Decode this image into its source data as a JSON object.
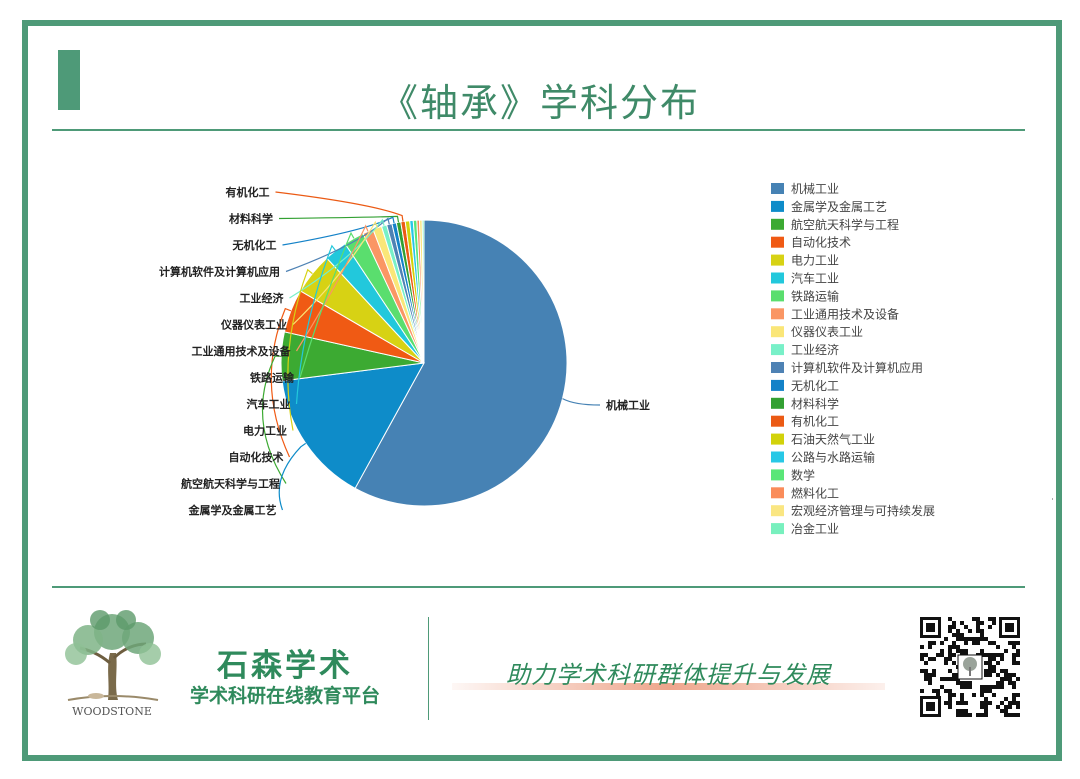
{
  "title": "《轴承》学科分布",
  "colors": {
    "frame": "#4e9a78",
    "title": "#3f8a68",
    "brand": "#2f8a5c"
  },
  "chart_data": {
    "type": "pie",
    "title": "",
    "legend_position": "right",
    "slices": [
      {
        "label": "机械工业",
        "value": 58.0,
        "color": "#4682b4"
      },
      {
        "label": "金属学及金属工艺",
        "value": 15.0,
        "color": "#0e8cc9"
      },
      {
        "label": "航空航天科学与工程",
        "value": 5.5,
        "color": "#3caa32"
      },
      {
        "label": "自动化技术",
        "value": 4.9,
        "color": "#f05a14"
      },
      {
        "label": "电力工业",
        "value": 4.7,
        "color": "#d7d214"
      },
      {
        "label": "汽车工业",
        "value": 2.6,
        "color": "#22c8dc"
      },
      {
        "label": "铁路运输",
        "value": 2.3,
        "color": "#5ade6e"
      },
      {
        "label": "工业通用技术及设备",
        "value": 1.2,
        "color": "#fa9664"
      },
      {
        "label": "仪器仪表工业",
        "value": 1.0,
        "color": "#fae678"
      },
      {
        "label": "工业经济",
        "value": 0.6,
        "color": "#78f0c8"
      },
      {
        "label": "计算机软件及计算机应用",
        "value": 0.6,
        "color": "#4e82b4"
      },
      {
        "label": "无机化工",
        "value": 0.5,
        "color": "#1482c8"
      },
      {
        "label": "材料科学",
        "value": 0.5,
        "color": "#32a032"
      },
      {
        "label": "有机化工",
        "value": 0.5,
        "color": "#eb5a14"
      },
      {
        "label": "石油天然气工业",
        "value": 0.5,
        "color": "#d2d20a"
      },
      {
        "label": "公路与水路运输",
        "value": 0.4,
        "color": "#28c8e6"
      },
      {
        "label": "数学",
        "value": 0.4,
        "color": "#5ae678"
      },
      {
        "label": "燃料化工",
        "value": 0.3,
        "color": "#fa8c5a"
      },
      {
        "label": "宏观经济管理与可持续发展",
        "value": 0.3,
        "color": "#fae682"
      },
      {
        "label": "冶金工业",
        "value": 0.2,
        "color": "#78f0be"
      }
    ],
    "outer_labels": [
      "机械工业",
      "金属学及金属工艺",
      "航空航天科学与工程",
      "自动化技术",
      "电力工业",
      "汽车工业",
      "铁路运输",
      "工业通用技术及设备",
      "仪器仪表工业",
      "工业经济",
      "计算机软件及计算机应用",
      "无机化工",
      "材料科学",
      "有机化工"
    ]
  },
  "footer": {
    "logo_text": "WOODSTONE",
    "brand_name": "石森学术",
    "brand_subtitle": "学术科研在线教育平台",
    "slogan": "助力学术科研群体提升与发展",
    "qr_icon": "qr-code-icon"
  },
  "stray_mark": "˙"
}
